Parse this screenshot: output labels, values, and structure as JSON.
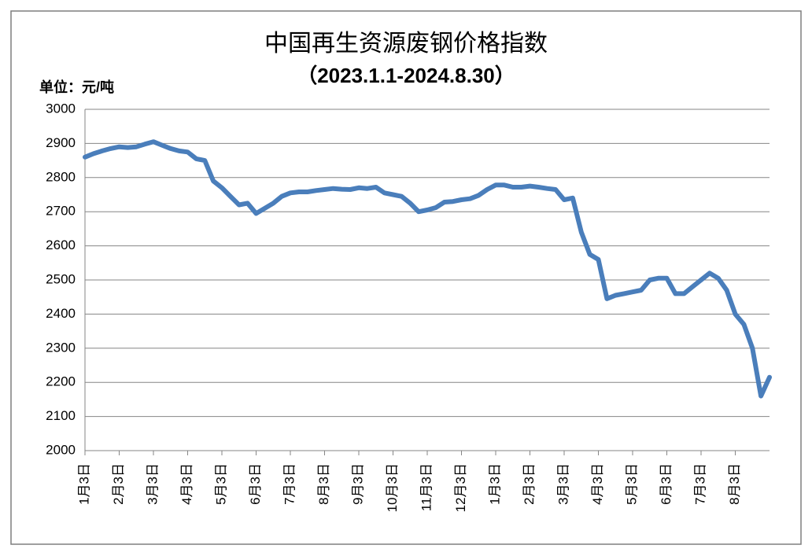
{
  "chart_data": {
    "type": "line",
    "title": "中国再生资源废钢价格指数",
    "subtitle": "（2023.1.1-2024.8.30）",
    "y_axis_label": "单位：元/吨",
    "categories": [
      "1月3日",
      null,
      null,
      null,
      "2月3日",
      null,
      null,
      null,
      "3月3日",
      null,
      null,
      null,
      "4月3日",
      null,
      null,
      null,
      "5月3日",
      null,
      null,
      null,
      "6月3日",
      null,
      null,
      null,
      "7月3日",
      null,
      null,
      null,
      "8月3日",
      null,
      null,
      null,
      "9月3日",
      null,
      null,
      null,
      "10月3日",
      null,
      null,
      null,
      "11月3日",
      null,
      null,
      null,
      "12月3日",
      null,
      null,
      null,
      "1月3日",
      null,
      null,
      null,
      "2月3日",
      null,
      null,
      null,
      "3月3日",
      null,
      null,
      null,
      "4月3日",
      null,
      null,
      null,
      "5月3日",
      null,
      null,
      null,
      "6月3日",
      null,
      null,
      null,
      "7月3日",
      null,
      null,
      null,
      "8月3日",
      null,
      null,
      null,
      null
    ],
    "series": [
      {
        "color": "#4a7ebb",
        "values": [
          2860,
          2870,
          2878,
          2885,
          2890,
          2888,
          2890,
          2898,
          2905,
          2895,
          2885,
          2878,
          2875,
          2855,
          2850,
          2790,
          2770,
          2745,
          2720,
          2725,
          2695,
          2710,
          2725,
          2745,
          2755,
          2758,
          2758,
          2762,
          2765,
          2768,
          2766,
          2765,
          2770,
          2768,
          2772,
          2755,
          2750,
          2745,
          2725,
          2700,
          2705,
          2712,
          2728,
          2730,
          2735,
          2738,
          2748,
          2765,
          2778,
          2778,
          2772,
          2772,
          2775,
          2772,
          2768,
          2765,
          2735,
          2740,
          2640,
          2575,
          2560,
          2445,
          2455,
          2460,
          2465,
          2470,
          2500,
          2505,
          2505,
          2460,
          2460,
          2480,
          2500,
          2520,
          2505,
          2470,
          2400,
          2370,
          2300,
          2160,
          2215
        ]
      }
    ],
    "ylim": [
      2000,
      3000
    ],
    "yticks": [
      2000,
      2100,
      2200,
      2300,
      2400,
      2500,
      2600,
      2700,
      2800,
      2900,
      3000
    ],
    "grid": true
  }
}
